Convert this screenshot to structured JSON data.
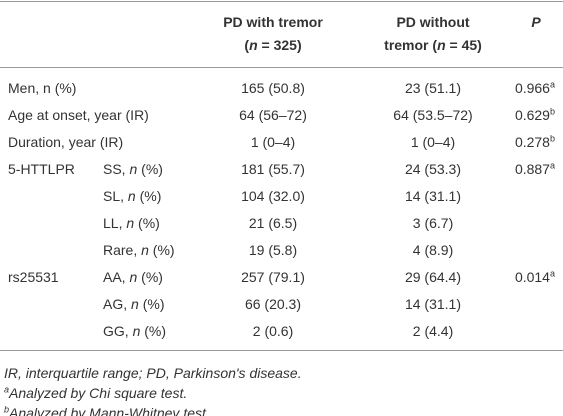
{
  "header": {
    "with": [
      [
        {
          "t": "PD with tremor"
        }
      ],
      [
        {
          "t": "("
        },
        {
          "t": "n",
          "i": true
        },
        {
          "t": " = 325)"
        }
      ]
    ],
    "without": [
      [
        {
          "t": "PD without"
        }
      ],
      [
        {
          "t": "tremor ("
        },
        {
          "t": "n",
          "i": true
        },
        {
          "t": " = 45)"
        }
      ]
    ],
    "p": [
      [
        {
          "t": "P",
          "i": true
        }
      ]
    ]
  },
  "rows": [
    {
      "label": [
        {
          "t": "Men, n (%)"
        }
      ],
      "with": "165 (50.8)",
      "without": "23 (51.1)",
      "p": "0.966",
      "sup": "a"
    },
    {
      "label": [
        {
          "t": "Age at onset, year (IR)"
        }
      ],
      "with": "64 (56–72)",
      "without": "64 (53.5–72)",
      "p": "0.629",
      "sup": "b"
    },
    {
      "label": [
        {
          "t": "Duration, year (IR)"
        }
      ],
      "with": "1 (0–4)",
      "without": "1 (0–4)",
      "p": "0.278",
      "sup": "b"
    },
    {
      "group": "5-HTTLPR",
      "label": [
        {
          "t": "SS, "
        },
        {
          "t": "n",
          "i": true
        },
        {
          "t": " (%)"
        }
      ],
      "with": "181 (55.7)",
      "without": "24 (53.3)",
      "p": "0.887",
      "sup": "a"
    },
    {
      "label": [
        {
          "t": "SL, "
        },
        {
          "t": "n",
          "i": true
        },
        {
          "t": " (%)"
        }
      ],
      "with": "104 (32.0)",
      "without": "14 (31.1)"
    },
    {
      "label": [
        {
          "t": "LL, "
        },
        {
          "t": "n",
          "i": true
        },
        {
          "t": " (%)"
        }
      ],
      "with": "21 (6.5)",
      "without": "3 (6.7)"
    },
    {
      "label": [
        {
          "t": "Rare, "
        },
        {
          "t": "n",
          "i": true
        },
        {
          "t": " (%)"
        }
      ],
      "with": "19 (5.8)",
      "without": "4 (8.9)"
    },
    {
      "group": "rs25531",
      "label": [
        {
          "t": "AA, "
        },
        {
          "t": "n",
          "i": true
        },
        {
          "t": " (%)"
        }
      ],
      "with": "257 (79.1)",
      "without": "29 (64.4)",
      "p": "0.014",
      "sup": "a"
    },
    {
      "label": [
        {
          "t": "AG, "
        },
        {
          "t": "n",
          "i": true
        },
        {
          "t": " (%)"
        }
      ],
      "with": "66 (20.3)",
      "without": "14 (31.1)"
    },
    {
      "label": [
        {
          "t": "GG, "
        },
        {
          "t": "n",
          "i": true
        },
        {
          "t": " (%)"
        }
      ],
      "with": "2 (0.6)",
      "without": "2 (4.4)"
    }
  ],
  "footnotes": [
    [
      {
        "t": "IR, interquartile range; PD, Parkinson's disease.",
        "i": true
      }
    ],
    [
      {
        "t": "a",
        "i": true,
        "sup": true
      },
      {
        "t": "Analyzed by Chi square test.",
        "i": true
      }
    ],
    [
      {
        "t": "b",
        "i": true,
        "sup": true
      },
      {
        "t": "Analyzed by Mann-Whitney test.",
        "i": true
      }
    ]
  ]
}
